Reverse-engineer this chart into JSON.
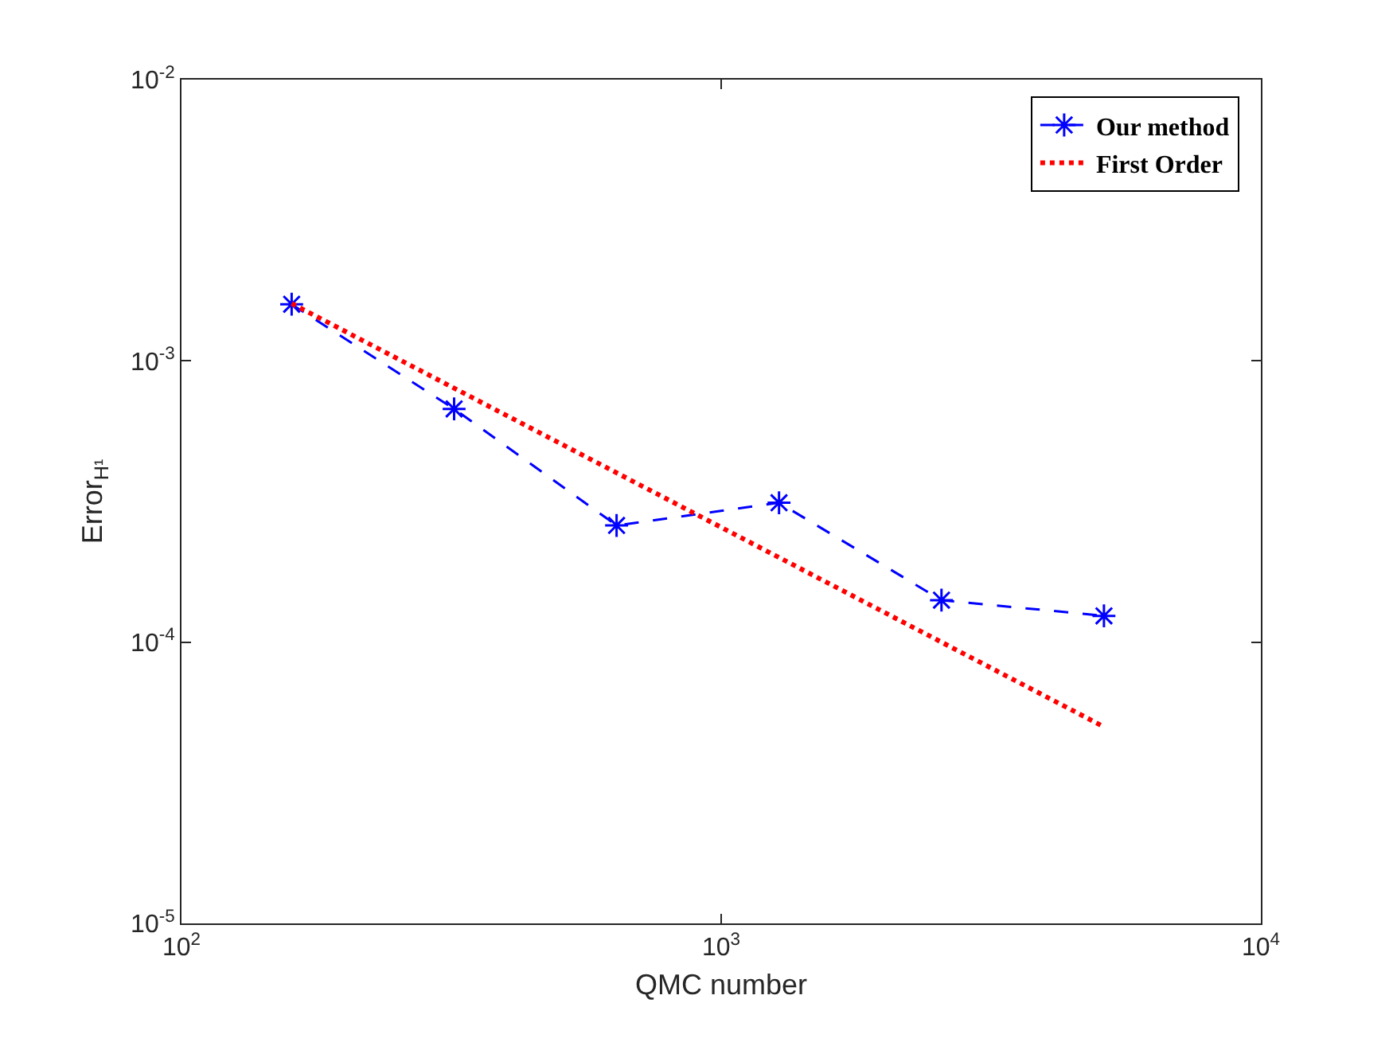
{
  "chart_data": {
    "type": "line",
    "xlabel": "QMC number",
    "ylabel": "Error$_{H¹}$",
    "log": "xy",
    "grid": false,
    "legend": "top right",
    "xlim": [
      100,
      10000
    ],
    "xticks": [
      {
        "value": 100,
        "label": "10$^{2}$"
      },
      {
        "value": 1000,
        "label": "10$^{3}$"
      },
      {
        "value": 10000,
        "label": "10$^{4}$"
      }
    ],
    "ylim": [
      1e-05,
      0.01
    ],
    "yticks": [
      {
        "value": 1e-05,
        "label": "10$^{-5}$"
      },
      {
        "value": 0.0001,
        "label": "10$^{-4}$"
      },
      {
        "value": 0.001,
        "label": "10$^{-3}$"
      },
      {
        "value": 0.01,
        "label": "10$^{-2}$"
      }
    ],
    "series": [
      {
        "name": "Our method",
        "color": "#0000ff",
        "marker": "cross",
        "line_style": "dashed",
        "x": [
          160,
          320,
          640,
          1280,
          2560,
          5120
        ],
        "values": [
          0.00159,
          0.000675,
          0.00026,
          0.000313,
          0.000141,
          0.000124
        ]
      },
      {
        "name": "First Order",
        "color": "#ff0000",
        "marker": "none",
        "line_style": "dotted",
        "x": [
          160,
          5120
        ],
        "values": [
          0.0016,
          5e-05
        ]
      }
    ]
  }
}
